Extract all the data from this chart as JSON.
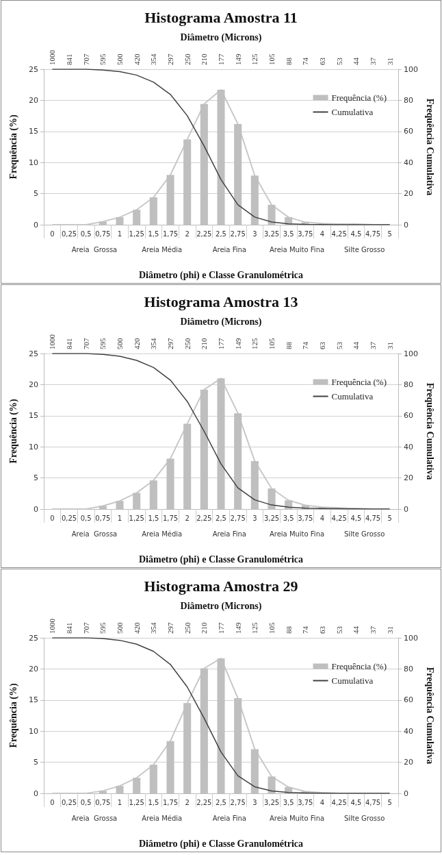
{
  "chart_data": [
    {
      "type": "bar",
      "title": "Histograma Amostra 11",
      "xlabel": "Diâmetro (phi) e Classe Granulométrica",
      "ylabel": "Frequência (%)",
      "y2label": "Frequência Cumulativa",
      "x2label": "Diâmetro (Microns)",
      "categories": [
        "0",
        "0,25",
        "0,5",
        "0,75",
        "1",
        "1,25",
        "1,5",
        "1,75",
        "2",
        "2,25",
        "2,5",
        "2,75",
        "3",
        "3,25",
        "3,5",
        "3,75",
        "4",
        "4,25",
        "4,5",
        "4,75",
        "5"
      ],
      "annotations": [
        "Areia  Grossa",
        "Areia Média",
        "Areia Fina",
        "Areia Muito Fina",
        "Silte Grosso",
        "1000",
        "841",
        "707",
        "595",
        "500",
        "420",
        "354",
        "297",
        "250",
        "210",
        "177",
        "149",
        "125",
        "105",
        "88",
        "74",
        "63",
        "53",
        "44",
        "37",
        "31"
      ],
      "series": [
        {
          "name": "Frequência (%)",
          "color": "#bfbfbf",
          "values": [
            0,
            0,
            0,
            0.5,
            1.2,
            2.4,
            4.4,
            8.0,
            13.7,
            19.4,
            21.7,
            16.2,
            7.9,
            3.2,
            1.2,
            0.4,
            0.2,
            0.1,
            0.1,
            0,
            0
          ]
        },
        {
          "type": "line",
          "color": "#c8c8c8",
          "values": [
            0,
            0,
            0,
            0.5,
            1.2,
            2.4,
            4.4,
            8.0,
            13.7,
            19.4,
            21.7,
            16.2,
            7.9,
            3.2,
            1.2,
            0.4,
            0.2,
            0.1,
            0.1,
            0,
            0
          ]
        },
        {
          "name": "Cumulativa",
          "type": "line",
          "axis": "y2",
          "color": "#404040",
          "values": [
            100,
            100,
            100,
            99.5,
            98.5,
            96.2,
            91.7,
            83.8,
            70.1,
            50.6,
            29,
            12.8,
            4.9,
            1.8,
            0.6,
            0.2,
            0.1,
            0,
            0,
            0,
            0
          ]
        }
      ],
      "ylim": [
        0,
        25
      ],
      "yticks": [
        0,
        5,
        10,
        15,
        20,
        25
      ],
      "y2lim": [
        0,
        100
      ],
      "y2ticks": [
        0,
        20,
        40,
        60,
        80,
        100
      ],
      "grid": "y",
      "legend": "top right",
      "marker": "none"
    },
    {
      "type": "bar",
      "title": "Histograma Amostra 13",
      "xlabel": "Diâmetro (phi) e Classe Granulométrica",
      "ylabel": "Frequência (%)",
      "y2label": "Frequência Cumulativa",
      "x2label": "Diâmetro (Microns)",
      "categories": [
        "0",
        "0,25",
        "0,5",
        "0,75",
        "1",
        "1,25",
        "1,5",
        "1,75",
        "2",
        "2,25",
        "2,5",
        "2,75",
        "3",
        "3,25",
        "3,5",
        "3,75",
        "4",
        "4,25",
        "4,5",
        "4,75",
        "5"
      ],
      "annotations": [
        "Areia  Grossa",
        "Areia Média",
        "Areia Fina",
        "Areia Muito Fina",
        "Silte Grosso",
        "1000",
        "841",
        "707",
        "595",
        "500",
        "420",
        "354",
        "297",
        "250",
        "210",
        "177",
        "149",
        "125",
        "105",
        "88",
        "74",
        "63",
        "53",
        "44",
        "37",
        "31"
      ],
      "series": [
        {
          "name": "Frequência (%)",
          "color": "#bfbfbf",
          "values": [
            0,
            0,
            0,
            0.5,
            1.3,
            2.6,
            4.6,
            8.1,
            13.7,
            19.2,
            21.0,
            15.4,
            7.7,
            3.3,
            1.4,
            0.6,
            0.3,
            0.2,
            0.1,
            0,
            0
          ]
        },
        {
          "type": "line",
          "color": "#c8c8c8",
          "values": [
            0,
            0,
            0,
            0.5,
            1.3,
            2.6,
            4.6,
            8.1,
            13.7,
            19.2,
            21.0,
            15.4,
            7.7,
            3.3,
            1.4,
            0.6,
            0.3,
            0.2,
            0.1,
            0,
            0
          ]
        },
        {
          "name": "Cumulativa",
          "type": "line",
          "axis": "y2",
          "color": "#404040",
          "values": [
            100,
            100,
            100,
            99.5,
            98.2,
            95.6,
            91,
            82.9,
            69.2,
            50,
            29,
            13.6,
            5.9,
            2.6,
            1.2,
            0.6,
            0.3,
            0.2,
            0.1,
            0,
            0
          ]
        }
      ],
      "ylim": [
        0,
        25
      ],
      "yticks": [
        0,
        5,
        10,
        15,
        20,
        25
      ],
      "y2lim": [
        0,
        100
      ],
      "y2ticks": [
        0,
        20,
        40,
        60,
        80,
        100
      ],
      "grid": "y",
      "legend": "top right",
      "marker": "none"
    },
    {
      "type": "bar",
      "title": "Histograma Amostra 29",
      "xlabel": "Diâmetro (phi) e Classe Granulométrica",
      "ylabel": "Frequência (%)",
      "y2label": "Frequência Cumulativa",
      "x2label": "Diâmetro (Microns)",
      "categories": [
        "0",
        "0,25",
        "0,5",
        "0,75",
        "1",
        "1,25",
        "1,5",
        "1,75",
        "2",
        "2,25",
        "2,5",
        "2,75",
        "3",
        "3,25",
        "3,5",
        "3,75",
        "4",
        "4,25",
        "4,5",
        "4,75",
        "5"
      ],
      "annotations": [
        "Areia  Grossa",
        "Areia Média",
        "Areia Fina",
        "Areia Muito Fina",
        "Silte Grosso",
        "1000",
        "841",
        "707",
        "595",
        "500",
        "420",
        "354",
        "297",
        "250",
        "210",
        "177",
        "149",
        "125",
        "105",
        "88",
        "74",
        "63",
        "53",
        "44",
        "37",
        "31"
      ],
      "series": [
        {
          "name": "Frequência (%)",
          "color": "#bfbfbf",
          "values": [
            0,
            0,
            0,
            0.4,
            1.2,
            2.5,
            4.6,
            8.4,
            14.5,
            20.1,
            21.7,
            15.3,
            7.1,
            2.7,
            1.0,
            0.3,
            0.1,
            0,
            0,
            0,
            0
          ]
        },
        {
          "type": "line",
          "color": "#c8c8c8",
          "values": [
            0,
            0,
            0,
            0.4,
            1.2,
            2.5,
            4.6,
            8.4,
            14.5,
            20.1,
            21.7,
            15.3,
            7.1,
            2.7,
            1.0,
            0.3,
            0.1,
            0,
            0,
            0,
            0
          ]
        },
        {
          "name": "Cumulativa",
          "type": "line",
          "axis": "y2",
          "color": "#404040",
          "values": [
            100,
            100,
            100,
            99.6,
            98.4,
            95.9,
            91.3,
            82.9,
            68.4,
            48.3,
            26.6,
            11.3,
            4.2,
            1.5,
            0.5,
            0.2,
            0.1,
            0,
            0,
            0,
            0
          ]
        }
      ],
      "ylim": [
        0,
        25
      ],
      "yticks": [
        0,
        5,
        10,
        15,
        20,
        25
      ],
      "y2lim": [
        0,
        100
      ],
      "y2ticks": [
        0,
        20,
        40,
        60,
        80,
        100
      ],
      "grid": "y",
      "legend": "top right",
      "marker": "none"
    }
  ]
}
